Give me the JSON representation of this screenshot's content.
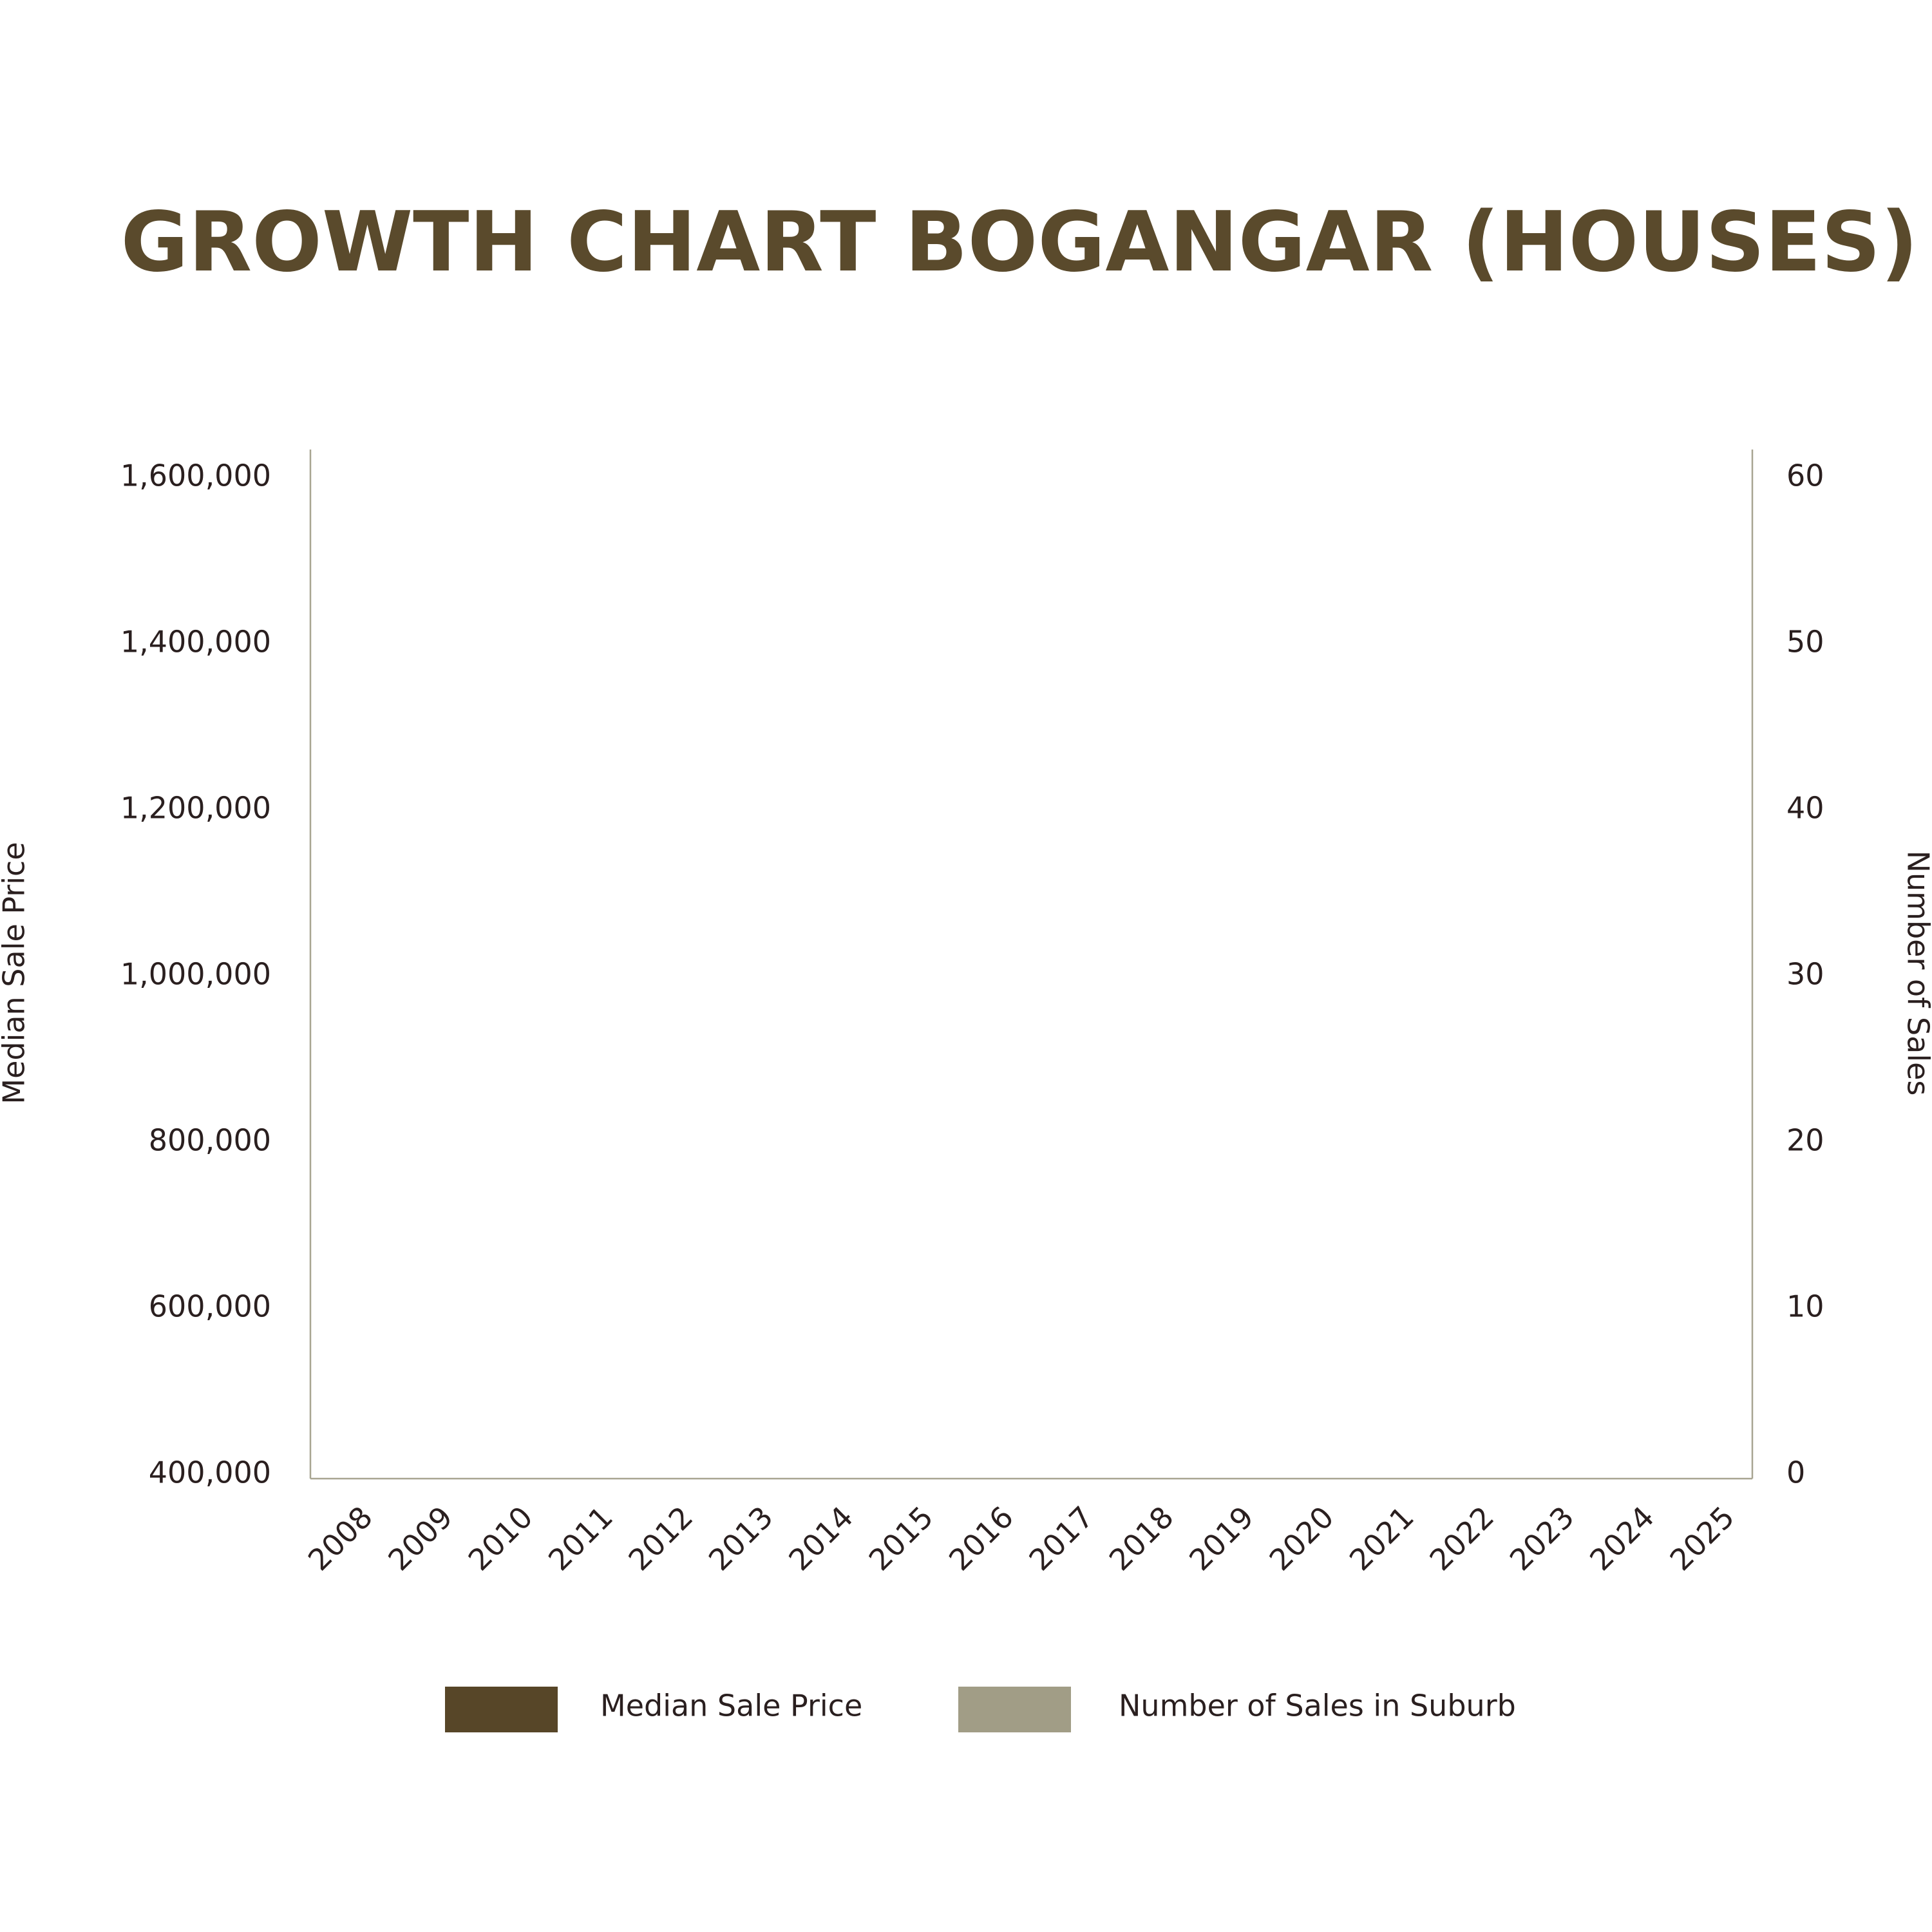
{
  "chart_data": {
    "type": "bar",
    "title": "GROWTH CHART BOGANGAR (HOUSES)",
    "y_label": "Median Sale Price",
    "y2_label": "Number of Sales",
    "categories": [
      "2008",
      "2009",
      "2010",
      "2011",
      "2012",
      "2013",
      "2014",
      "2015",
      "2016",
      "2017",
      "2018",
      "2019",
      "2020",
      "2021",
      "2022",
      "2023",
      "2024",
      "2025"
    ],
    "series": [
      {
        "name": "Median Sale Price",
        "color": "#574628",
        "values": [
          null,
          null,
          null,
          null,
          null,
          null,
          null,
          null,
          null,
          null,
          null,
          null,
          null,
          null,
          null,
          null,
          null,
          null
        ]
      },
      {
        "name": "Number of Sales in Suburb",
        "color": "#a19d86",
        "axis": "y2",
        "values": [
          null,
          null,
          null,
          null,
          null,
          null,
          null,
          null,
          null,
          null,
          null,
          null,
          null,
          null,
          null,
          null,
          null,
          null
        ]
      }
    ],
    "ylim": [
      400000,
      1600000
    ],
    "yticks": [
      {
        "value": 400000,
        "label": "400,000"
      },
      {
        "value": 600000,
        "label": "600,000"
      },
      {
        "value": 800000,
        "label": "800,000"
      },
      {
        "value": 1000000,
        "label": "1,000,000"
      },
      {
        "value": 1200000,
        "label": "1,200,000"
      },
      {
        "value": 1400000,
        "label": "1,400,000"
      },
      {
        "value": 1600000,
        "label": "1,600,000"
      }
    ],
    "y2lim": [
      0,
      60
    ],
    "y2ticks": [
      0,
      10,
      20,
      30,
      40,
      50,
      60
    ],
    "grid": false
  }
}
